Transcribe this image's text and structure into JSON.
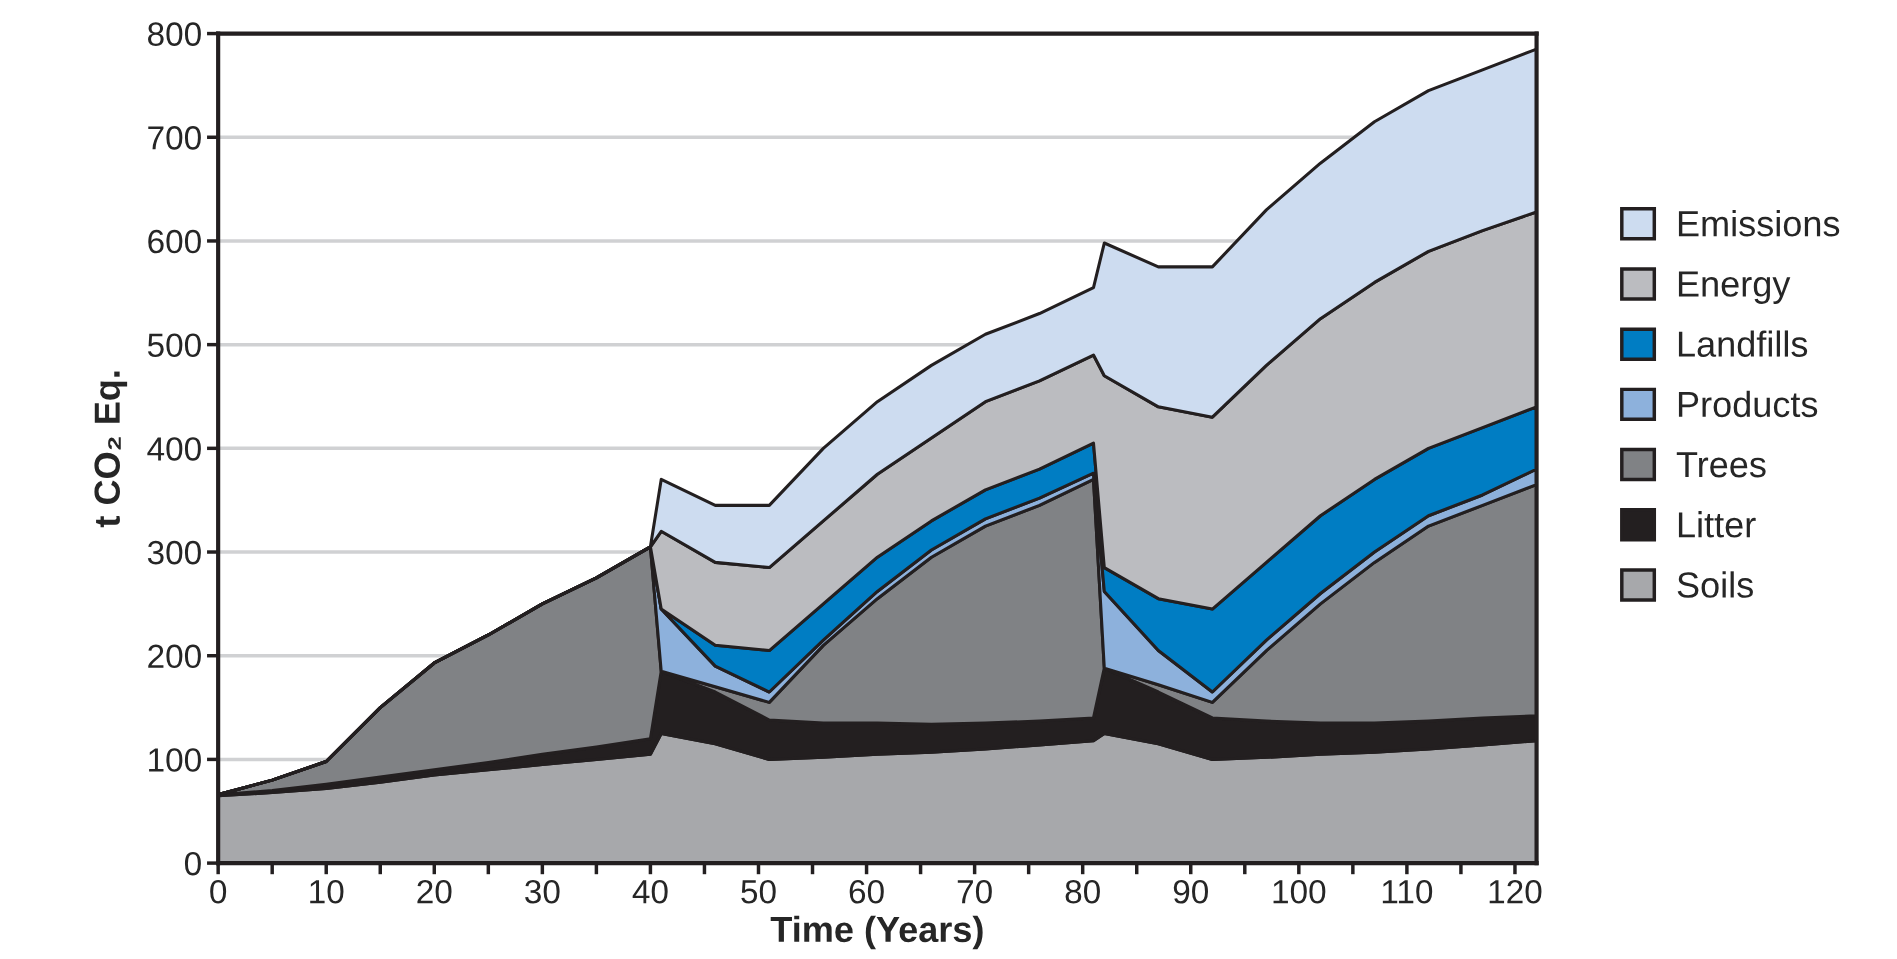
{
  "chart_data": {
    "type": "area",
    "stacked": true,
    "xlabel": "Time (Years)",
    "ylabel": "t CO₂ Eq.",
    "x": [
      0,
      5,
      10,
      15,
      20,
      25,
      30,
      35,
      40,
      41,
      46,
      51,
      56,
      61,
      66,
      71,
      76,
      81,
      82,
      87,
      92,
      97,
      102,
      107,
      112,
      117,
      122
    ],
    "series": [
      {
        "name": "Soils",
        "color": "#a7a8ab",
        "values": [
          65,
          68,
          72,
          78,
          85,
          90,
          95,
          100,
          105,
          125,
          115,
          100,
          102,
          105,
          107,
          110,
          114,
          118,
          125,
          115,
          100,
          102,
          105,
          107,
          110,
          114,
          118
        ]
      },
      {
        "name": "Litter",
        "color": "#231f20",
        "values": [
          1,
          2,
          4,
          5,
          5,
          7,
          10,
          12,
          15,
          60,
          50,
          38,
          33,
          30,
          27,
          25,
          23,
          22,
          63,
          50,
          40,
          35,
          30,
          28,
          27,
          26,
          24
        ]
      },
      {
        "name": "Trees",
        "color": "#808285",
        "values": [
          0,
          10,
          22,
          67,
          103,
          123,
          145,
          163,
          185,
          0,
          5,
          17,
          75,
          120,
          161,
          190,
          208,
          230,
          0,
          7,
          15,
          68,
          115,
          155,
          188,
          205,
          223
        ]
      },
      {
        "name": "Products",
        "color": "#8db1dc",
        "values": [
          0,
          0,
          0,
          0,
          0,
          0,
          0,
          0,
          0,
          60,
          20,
          10,
          5,
          7,
          7,
          7,
          7,
          6,
          74,
          33,
          10,
          10,
          10,
          10,
          10,
          10,
          15
        ]
      },
      {
        "name": "Landfills",
        "color": "#007dc3",
        "values": [
          0,
          0,
          0,
          0,
          0,
          0,
          0,
          0,
          0,
          0,
          20,
          40,
          35,
          33,
          28,
          28,
          28,
          29,
          23,
          50,
          80,
          75,
          75,
          70,
          65,
          65,
          60
        ]
      },
      {
        "name": "Energy",
        "color": "#bbbcc0",
        "values": [
          0,
          0,
          0,
          0,
          0,
          0,
          0,
          0,
          0,
          75,
          80,
          80,
          80,
          80,
          80,
          85,
          85,
          85,
          185,
          185,
          185,
          190,
          190,
          190,
          190,
          190,
          188
        ]
      },
      {
        "name": "Emissions",
        "color": "#cddcf0",
        "values": [
          0,
          0,
          0,
          0,
          0,
          0,
          0,
          0,
          0,
          50,
          55,
          60,
          70,
          70,
          70,
          65,
          65,
          65,
          128,
          135,
          145,
          150,
          150,
          155,
          155,
          155,
          157
        ]
      }
    ],
    "xlim": [
      0,
      122
    ],
    "ylim": [
      0,
      800
    ],
    "xticks": [
      0,
      {
        "value": 5,
        "label": null
      },
      10,
      {
        "value": 15,
        "label": null
      },
      20,
      {
        "value": 25,
        "label": null
      },
      30,
      {
        "value": 35,
        "label": null
      },
      40,
      {
        "value": 45,
        "label": null
      },
      50,
      {
        "value": 55,
        "label": null
      },
      60,
      {
        "value": 65,
        "label": null
      },
      70,
      {
        "value": 75,
        "label": null
      },
      80,
      {
        "value": 85,
        "label": null
      },
      90,
      {
        "value": 95,
        "label": null
      },
      100,
      {
        "value": 105,
        "label": null
      },
      110,
      {
        "value": 115,
        "label": null
      },
      120
    ],
    "yticks": [
      0,
      100,
      200,
      300,
      400,
      500,
      600,
      700,
      800
    ],
    "grid": "y",
    "legend": "right"
  }
}
